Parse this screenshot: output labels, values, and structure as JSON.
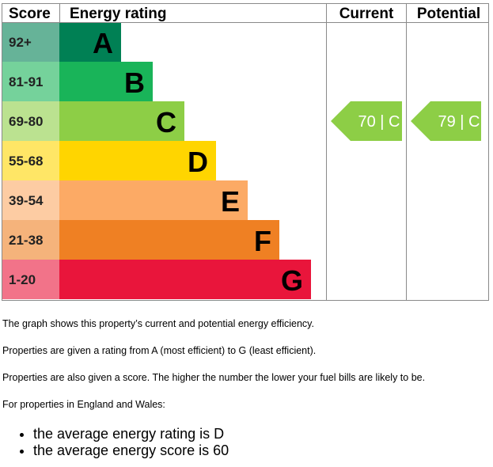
{
  "chart_data": {
    "type": "bar",
    "headers": {
      "score": "Score",
      "rating": "Energy rating",
      "current": "Current",
      "potential": "Potential"
    },
    "bands": [
      {
        "score": "92+",
        "letter": "A",
        "color": "#008054",
        "score_bg": "#66b398"
      },
      {
        "score": "81-91",
        "letter": "B",
        "color": "#19b459",
        "score_bg": "#75d29b"
      },
      {
        "score": "69-80",
        "letter": "C",
        "color": "#8dce46",
        "score_bg": "#bbe290"
      },
      {
        "score": "55-68",
        "letter": "D",
        "color": "#ffd500",
        "score_bg": "#ffe666"
      },
      {
        "score": "39-54",
        "letter": "E",
        "color": "#fcaa65",
        "score_bg": "#fdcca3"
      },
      {
        "score": "21-38",
        "letter": "F",
        "color": "#ef8023",
        "score_bg": "#f5b37b"
      },
      {
        "score": "1-20",
        "letter": "G",
        "color": "#e9153b",
        "score_bg": "#f27389"
      }
    ],
    "current": {
      "score": 70,
      "letter": "C",
      "label": "70 | C",
      "band": "C",
      "color": "#8dce46"
    },
    "potential": {
      "score": 79,
      "letter": "C",
      "label": "79 | C",
      "band": "C",
      "color": "#8dce46"
    }
  },
  "text": {
    "line1": "The graph shows this property’s current and potential energy efficiency.",
    "line2": "Properties are given a rating from A (most efficient) to G (least efficient).",
    "line3": "Properties are also given a score. The higher the number the lower your fuel bills are likely to be.",
    "line4": "For properties in England and Wales:",
    "bullets": [
      "the average energy rating is D",
      "the average energy score is 60"
    ]
  }
}
